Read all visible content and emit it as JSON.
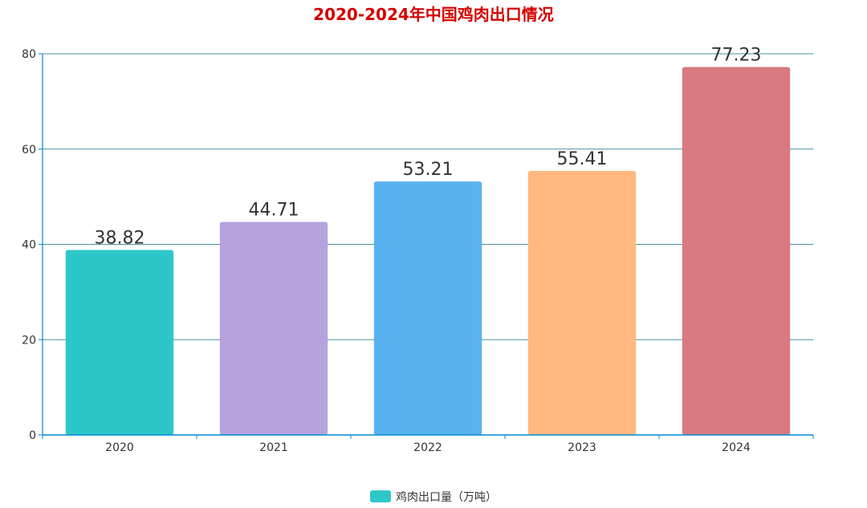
{
  "chart_data": {
    "type": "bar",
    "title": "2020-2024年中国鸡肉出口情况",
    "categories": [
      "2020",
      "2021",
      "2022",
      "2023",
      "2024"
    ],
    "series": [
      {
        "name": "鸡肉出口量（万吨）",
        "values": [
          38.82,
          44.71,
          53.21,
          55.41,
          77.23
        ]
      }
    ],
    "bar_colors": [
      "#2ec7c9",
      "#b6a2de",
      "#5ab1ef",
      "#ffb980",
      "#d87a80"
    ],
    "xlabel": "",
    "ylabel": "",
    "ylim": [
      0,
      80
    ],
    "yticks": [
      0,
      20,
      40,
      60,
      80
    ],
    "grid": true,
    "legend_position": "bottom",
    "data_labels": true
  },
  "colors": {
    "title": "#d40000",
    "axis": "#008acd",
    "grid": "#4a8fa0",
    "tick_text": "#333333",
    "label_text": "#333333",
    "legend_swatch": "#2ec7c9"
  }
}
